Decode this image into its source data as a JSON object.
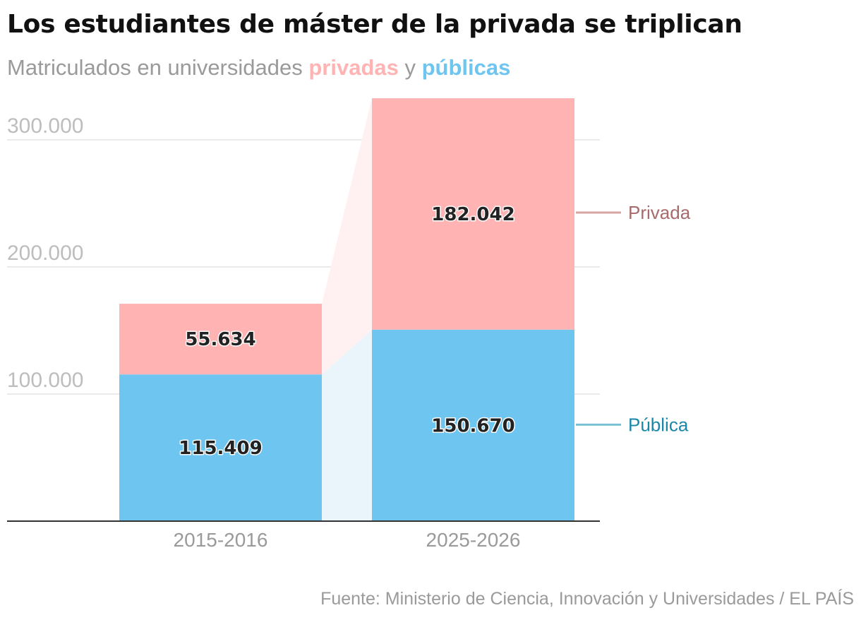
{
  "header": {
    "title": "Los estudiantes de máster de la privada se triplican",
    "subtitle_prefix": "Matriculados en universidades ",
    "subtitle_private": "privadas",
    "subtitle_and": " y ",
    "subtitle_public": "públicas"
  },
  "source": "Fuente: Ministerio de Ciencia, Innovación y Universidades / EL PAÍS",
  "colors": {
    "private": "#ffb3b3",
    "public": "#6ec6f0",
    "private_connector": "#fff1f1",
    "public_connector": "#eaf5fb",
    "private_legend_text": "#a86a6a",
    "public_legend_text": "#1a86a8",
    "private_legend_line": "#d8a3a3",
    "public_legend_line": "#7cc0d6",
    "grid": "#e3e3e3",
    "axis": "#333333"
  },
  "chart_data": {
    "type": "bar",
    "stacked": true,
    "title": "Los estudiantes de máster de la privada se triplican",
    "subtitle": "Matriculados en universidades privadas y públicas",
    "categories": [
      "2015-2016",
      "2025-2026"
    ],
    "series": [
      {
        "name": "Pública",
        "key": "public",
        "values": [
          115409,
          150670
        ],
        "labels": [
          "115.409",
          "150.670"
        ]
      },
      {
        "name": "Privada",
        "key": "private",
        "values": [
          55634,
          182042
        ],
        "labels": [
          "55.634",
          "182.042"
        ]
      }
    ],
    "yticks": [
      100000,
      200000,
      300000
    ],
    "ytick_labels": [
      "100.000",
      "200.000",
      "300.000"
    ],
    "ylim": [
      0,
      333000
    ],
    "grid": true,
    "legend": "right",
    "xlabel": "",
    "ylabel": ""
  }
}
